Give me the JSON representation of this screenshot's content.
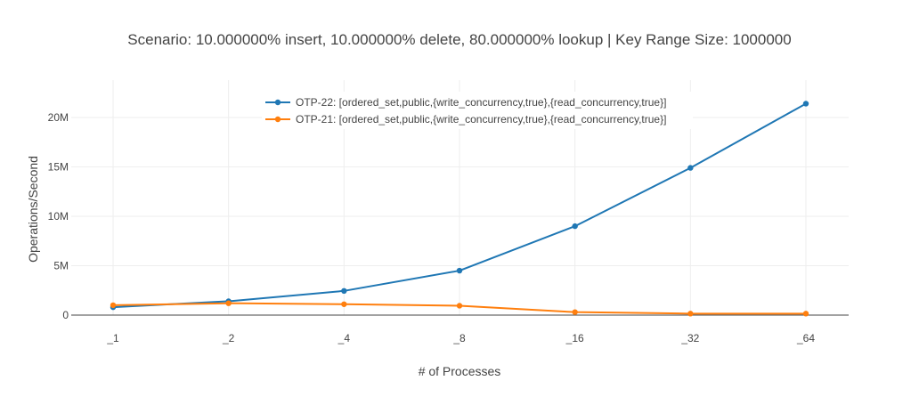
{
  "chart_data": {
    "type": "line",
    "title": "Scenario:  10.000000% insert,  10.000000% delete,  80.000000% lookup | Key Range Size: 1000000",
    "xlabel": "# of Processes",
    "ylabel": "Operations/Second",
    "categories": [
      "_1",
      "_2",
      "_4",
      "_8",
      "_16",
      "_32",
      "_64"
    ],
    "ylim": [
      0,
      22000000
    ],
    "yticks": [
      {
        "value": 0,
        "label": "0"
      },
      {
        "value": 5000000,
        "label": "5M"
      },
      {
        "value": 10000000,
        "label": "10M"
      },
      {
        "value": 15000000,
        "label": "15M"
      },
      {
        "value": 20000000,
        "label": "20M"
      }
    ],
    "grid": true,
    "legend_position": "top-center",
    "series": [
      {
        "name": "OTP-22: [ordered_set,public,{write_concurrency,true},{read_concurrency,true}]",
        "color": "#1f77b4",
        "values": [
          800000,
          1400000,
          2450000,
          4500000,
          9000000,
          14900000,
          21400000
        ]
      },
      {
        "name": "OTP-21: [ordered_set,public,{write_concurrency,true},{read_concurrency,true}]",
        "color": "#ff7f0e",
        "values": [
          1000000,
          1200000,
          1100000,
          950000,
          300000,
          150000,
          150000
        ]
      }
    ]
  }
}
